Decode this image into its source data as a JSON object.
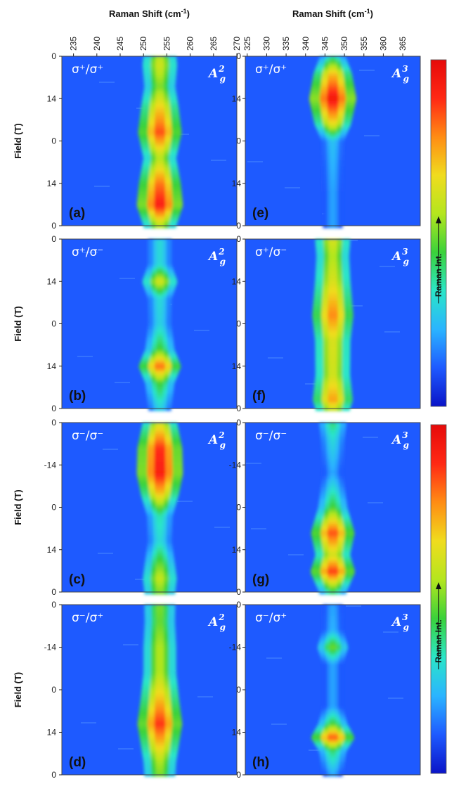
{
  "chart_data": {
    "type": "heatmap",
    "x_axis_title": "Raman Shift (cm",
    "x_axis_title_sup": "-1",
    "x_axis_title_tail": ")",
    "y_axis_title": "Field (T)",
    "colorbar_label": "Raman Int.",
    "colorscale": [
      "#0a14c8",
      "#1e5aff",
      "#2ab4ff",
      "#2ae6c8",
      "#3ad23a",
      "#b4e61e",
      "#f0dc1e",
      "#ff8c14",
      "#ff2814",
      "#e60a0a"
    ],
    "left_x_ticks": [
      "235",
      "240",
      "245",
      "250",
      "255",
      "260",
      "265",
      "270"
    ],
    "left_x_range": [
      232.5,
      270
    ],
    "right_x_ticks": [
      "325",
      "330",
      "335",
      "340",
      "345",
      "350",
      "355",
      "360",
      "365"
    ],
    "right_x_range": [
      324.5,
      369.5
    ],
    "panels": [
      {
        "label": "(a)",
        "pol": "σ⁺/σ⁺",
        "mode": "A",
        "mode_sup": "2",
        "mode_sub": "g",
        "y_ticks": [
          "0",
          "14",
          "0",
          "14",
          "0"
        ],
        "peak_center": 253.5,
        "field_profile": [
          [
            0.0,
            0.55
          ],
          [
            0.05,
            0.6
          ],
          [
            0.18,
            0.5
          ],
          [
            0.3,
            0.68
          ],
          [
            0.45,
            0.85
          ],
          [
            0.6,
            0.55
          ],
          [
            0.75,
            0.8
          ],
          [
            0.88,
            0.92
          ],
          [
            1.0,
            0.55
          ]
        ]
      },
      {
        "label": "(b)",
        "pol": "σ⁺/σ⁻",
        "mode": "A",
        "mode_sup": "2",
        "mode_sub": "g",
        "y_ticks": [
          "0",
          "14",
          "0",
          "14",
          "0"
        ],
        "peak_center": 253.5,
        "field_profile": [
          [
            0.0,
            0.3
          ],
          [
            0.15,
            0.3
          ],
          [
            0.25,
            0.62
          ],
          [
            0.35,
            0.3
          ],
          [
            0.5,
            0.28
          ],
          [
            0.65,
            0.45
          ],
          [
            0.75,
            0.82
          ],
          [
            0.85,
            0.45
          ],
          [
            1.0,
            0.28
          ]
        ]
      },
      {
        "label": "(c)",
        "pol": "σ⁻/σ⁻",
        "mode": "A",
        "mode_sup": "2",
        "mode_sub": "g",
        "y_ticks": [
          "0",
          "-14",
          "0",
          "14",
          "0"
        ],
        "peak_center": 253.5,
        "field_profile": [
          [
            0.0,
            0.6
          ],
          [
            0.15,
            0.88
          ],
          [
            0.3,
            0.92
          ],
          [
            0.42,
            0.7
          ],
          [
            0.55,
            0.35
          ],
          [
            0.7,
            0.3
          ],
          [
            0.85,
            0.5
          ],
          [
            0.92,
            0.58
          ],
          [
            1.0,
            0.5
          ]
        ]
      },
      {
        "label": "(d)",
        "pol": "σ⁻/σ⁺",
        "mode": "A",
        "mode_sup": "2",
        "mode_sub": "g",
        "y_ticks": [
          "0",
          "-14",
          "0",
          "14",
          "0"
        ],
        "peak_center": 253.5,
        "field_profile": [
          [
            0.0,
            0.5
          ],
          [
            0.1,
            0.48
          ],
          [
            0.25,
            0.55
          ],
          [
            0.4,
            0.55
          ],
          [
            0.55,
            0.7
          ],
          [
            0.7,
            0.88
          ],
          [
            0.82,
            0.7
          ],
          [
            0.92,
            0.55
          ],
          [
            1.0,
            0.5
          ]
        ]
      },
      {
        "label": "(e)",
        "pol": "σ⁺/σ⁺",
        "mode": "A",
        "mode_sup": "3",
        "mode_sub": "g",
        "y_ticks": [
          "0",
          "14",
          "0",
          "14",
          "0"
        ],
        "peak_center": 347.0,
        "field_profile": [
          [
            0.0,
            0.35
          ],
          [
            0.1,
            0.7
          ],
          [
            0.25,
            0.95
          ],
          [
            0.4,
            0.65
          ],
          [
            0.5,
            0.25
          ],
          [
            0.65,
            0.22
          ],
          [
            0.8,
            0.2
          ],
          [
            1.0,
            0.2
          ]
        ]
      },
      {
        "label": "(f)",
        "pol": "σ⁺/σ⁻",
        "mode": "A",
        "mode_sup": "3",
        "mode_sub": "g",
        "y_ticks": [
          "0",
          "14",
          "0",
          "14",
          "0"
        ],
        "peak_center": 347.0,
        "field_profile": [
          [
            0.0,
            0.62
          ],
          [
            0.1,
            0.55
          ],
          [
            0.25,
            0.62
          ],
          [
            0.45,
            0.78
          ],
          [
            0.6,
            0.62
          ],
          [
            0.8,
            0.6
          ],
          [
            0.95,
            0.75
          ],
          [
            1.0,
            0.6
          ]
        ]
      },
      {
        "label": "(g)",
        "pol": "σ⁻/σ⁻",
        "mode": "A",
        "mode_sup": "3",
        "mode_sub": "g",
        "y_ticks": [
          "0",
          "-14",
          "0",
          "14",
          "0"
        ],
        "peak_center": 347.0,
        "field_profile": [
          [
            0.0,
            0.4
          ],
          [
            0.1,
            0.3
          ],
          [
            0.3,
            0.2
          ],
          [
            0.5,
            0.45
          ],
          [
            0.65,
            0.85
          ],
          [
            0.78,
            0.6
          ],
          [
            0.88,
            0.88
          ],
          [
            1.0,
            0.4
          ]
        ]
      },
      {
        "label": "(h)",
        "pol": "σ⁻/σ⁺",
        "mode": "A",
        "mode_sup": "3",
        "mode_sub": "g",
        "y_ticks": [
          "0",
          "-14",
          "0",
          "14",
          "0"
        ],
        "peak_center": 347.0,
        "field_profile": [
          [
            0.0,
            0.2
          ],
          [
            0.15,
            0.22
          ],
          [
            0.25,
            0.5
          ],
          [
            0.35,
            0.2
          ],
          [
            0.6,
            0.2
          ],
          [
            0.7,
            0.45
          ],
          [
            0.78,
            0.85
          ],
          [
            0.86,
            0.4
          ],
          [
            1.0,
            0.2
          ]
        ]
      }
    ]
  }
}
